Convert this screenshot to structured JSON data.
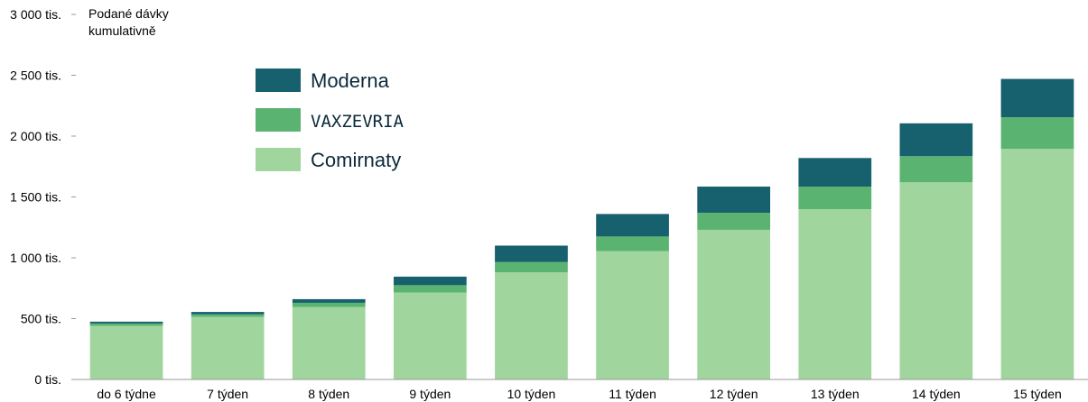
{
  "chart_data": {
    "type": "bar",
    "stacked": true,
    "ylabel": [
      "Podané dávky",
      "kumulativně"
    ],
    "y_ticks": [
      "0 tis.",
      "500 tis.",
      "1 000 tis.",
      "1 500 tis.",
      "2 000 tis.",
      "2 500 tis.",
      "3 000 tis."
    ],
    "ylim": [
      0,
      3000
    ],
    "categories": [
      "do 6 týdne",
      "7 týden",
      "8 týden",
      "9 týden",
      "10 týden",
      "11 týden",
      "12 týden",
      "13 týden",
      "14 týden",
      "15 týden"
    ],
    "series": [
      {
        "name": "Comirnaty",
        "color": "#a0d69e",
        "values": [
          440,
          515,
          595,
          715,
          880,
          1055,
          1230,
          1400,
          1620,
          1895
        ]
      },
      {
        "name": "VAXZEVRIA",
        "color": "#5bb371",
        "values": [
          20,
          20,
          35,
          60,
          85,
          120,
          140,
          185,
          215,
          260
        ]
      },
      {
        "name": "Moderna",
        "color": "#17606e",
        "values": [
          15,
          20,
          30,
          70,
          135,
          185,
          215,
          235,
          270,
          315
        ]
      }
    ],
    "legend": [
      "Moderna",
      "VAXZEVRIA",
      "Comirnaty"
    ],
    "legend_position": "top-left",
    "grid": false
  }
}
